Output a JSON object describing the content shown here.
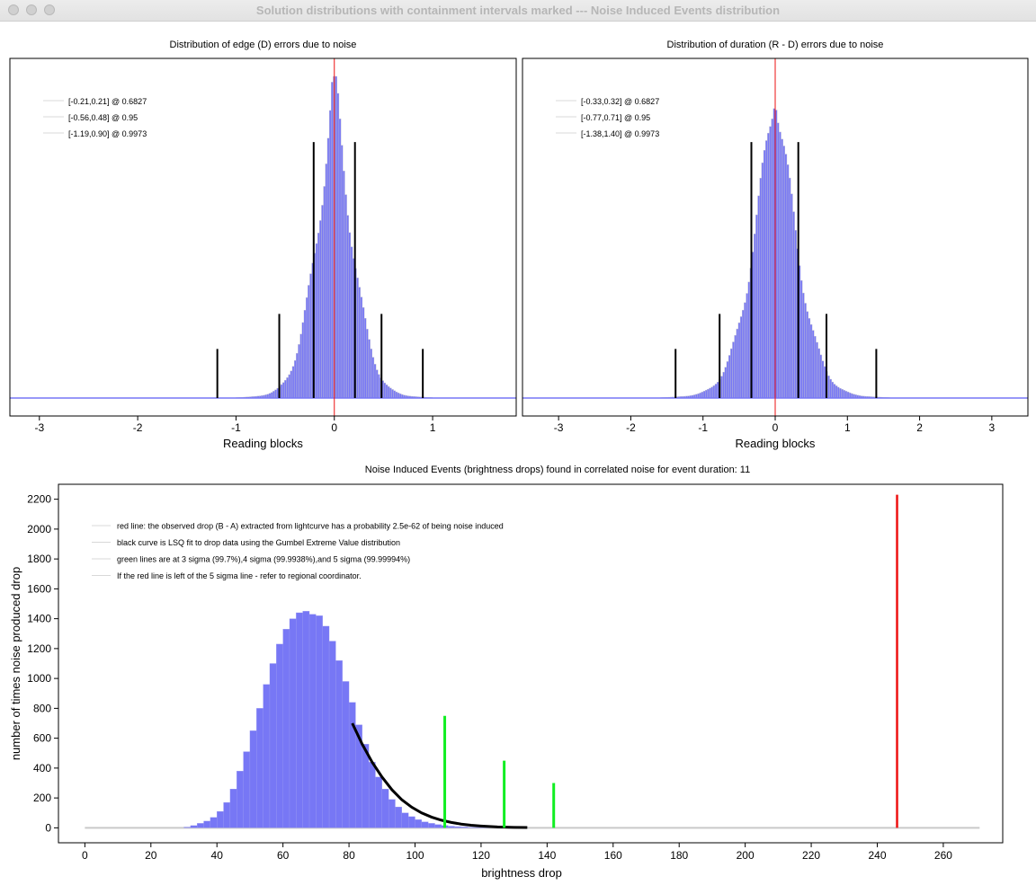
{
  "window": {
    "title": "Solution distributions with containment intervals marked --- Noise Induced Events distribution"
  },
  "colors": {
    "hist_fill": "#7777f5",
    "hist_edge": "#c4c4d0",
    "red": "#ee1111",
    "black": "#000000",
    "green": "#11ee22",
    "axis": "#000000",
    "legend_line": "#d8d8d8"
  },
  "chart_data": [
    {
      "type": "bar",
      "title": "Distribution of edge (D) errors due to noise",
      "xlabel": "Reading blocks",
      "ylabel": "",
      "xlim": [
        -3.3,
        1.85
      ],
      "x_ticks": [
        -3,
        -2,
        -1,
        0,
        1
      ],
      "distribution": {
        "shape": "peaked",
        "center": 0,
        "scale": 0.17,
        "x_range": [
          -3.3,
          1.85
        ]
      },
      "red_line_x": 0,
      "interval_lines": [
        {
          "x": -0.21,
          "height": 0.73
        },
        {
          "x": 0.21,
          "height": 0.73
        },
        {
          "x": -0.56,
          "height": 0.24
        },
        {
          "x": 0.48,
          "height": 0.24
        },
        {
          "x": -1.19,
          "height": 0.14
        },
        {
          "x": 0.9,
          "height": 0.14
        }
      ],
      "legend": [
        "[-0.21,0.21] @ 0.6827",
        "[-0.56,0.48] @ 0.95",
        "[-1.19,0.90] @ 0.9973"
      ]
    },
    {
      "type": "bar",
      "title": "Distribution of duration (R - D) errors due to noise",
      "xlabel": "Reading blocks",
      "ylabel": "",
      "xlim": [
        -3.5,
        3.5
      ],
      "x_ticks": [
        -3,
        -2,
        -1,
        0,
        1,
        2,
        3
      ],
      "distribution": {
        "shape": "peaked",
        "center": 0,
        "scale": 0.27,
        "x_range": [
          -3.5,
          3.5
        ]
      },
      "red_line_x": 0,
      "interval_lines": [
        {
          "x": -0.33,
          "height": 0.73
        },
        {
          "x": 0.32,
          "height": 0.73
        },
        {
          "x": -0.77,
          "height": 0.24
        },
        {
          "x": 0.71,
          "height": 0.24
        },
        {
          "x": -1.38,
          "height": 0.14
        },
        {
          "x": 1.4,
          "height": 0.14
        }
      ],
      "legend": [
        "[-0.33,0.32] @ 0.6827",
        "[-0.77,0.71] @ 0.95",
        "[-1.38,1.40] @ 0.9973"
      ]
    },
    {
      "type": "bar",
      "title": "Noise Induced Events (brightness drops) found in correlated noise for event duration: 11",
      "xlabel": "brightness drop",
      "ylabel": "number of times noise produced drop",
      "xlim": [
        -8,
        278
      ],
      "ylim": [
        -100,
        2300
      ],
      "x_ticks": [
        0,
        20,
        40,
        60,
        80,
        100,
        120,
        140,
        160,
        180,
        200,
        220,
        240,
        260
      ],
      "y_ticks": [
        0,
        200,
        400,
        600,
        800,
        1000,
        1200,
        1400,
        1600,
        1800,
        2000,
        2200
      ],
      "histogram": {
        "x": [
          30,
          32,
          34,
          36,
          38,
          40,
          42,
          44,
          46,
          48,
          50,
          52,
          54,
          56,
          58,
          60,
          62,
          64,
          66,
          68,
          70,
          72,
          74,
          76,
          78,
          80,
          82,
          84,
          86,
          88,
          90,
          92,
          94,
          96,
          98,
          100,
          102,
          104,
          106,
          108,
          110,
          112,
          114,
          116,
          118,
          120,
          122,
          124,
          126,
          128,
          130,
          132
        ],
        "values": [
          5,
          15,
          30,
          45,
          70,
          110,
          170,
          260,
          380,
          510,
          650,
          800,
          960,
          1100,
          1230,
          1330,
          1400,
          1440,
          1450,
          1430,
          1420,
          1350,
          1250,
          1120,
          980,
          840,
          690,
          560,
          440,
          340,
          260,
          190,
          140,
          100,
          75,
          55,
          40,
          30,
          22,
          16,
          11,
          8,
          6,
          4,
          3,
          2,
          2,
          1,
          1,
          1,
          1,
          1
        ]
      },
      "gumbel_fit": {
        "x": [
          81,
          84,
          87,
          90,
          93,
          96,
          99,
          102,
          105,
          108,
          111,
          114,
          117,
          120,
          125,
          130,
          134
        ],
        "y": [
          700,
          560,
          440,
          340,
          255,
          188,
          138,
          100,
          72,
          51,
          36,
          25,
          17,
          12,
          6,
          3,
          2
        ]
      },
      "red_line": {
        "x": 246,
        "y": 2230
      },
      "green_lines": [
        {
          "x": 109,
          "y": 750
        },
        {
          "x": 127,
          "y": 450
        },
        {
          "x": 142,
          "y": 300
        }
      ],
      "baseline_x": [
        0,
        271
      ],
      "legend": [
        "red line: the observed drop (B - A) extracted from lightcurve has a probability 2.5e-62 of being noise induced",
        "black curve is LSQ fit to drop data using the Gumbel Extreme Value distribution",
        "green lines are at 3 sigma (99.7%),4 sigma (99.9938%),and 5 sigma (99.99994%)",
        "If the red line is left of the 5 sigma line - refer to regional coordinator."
      ]
    }
  ]
}
